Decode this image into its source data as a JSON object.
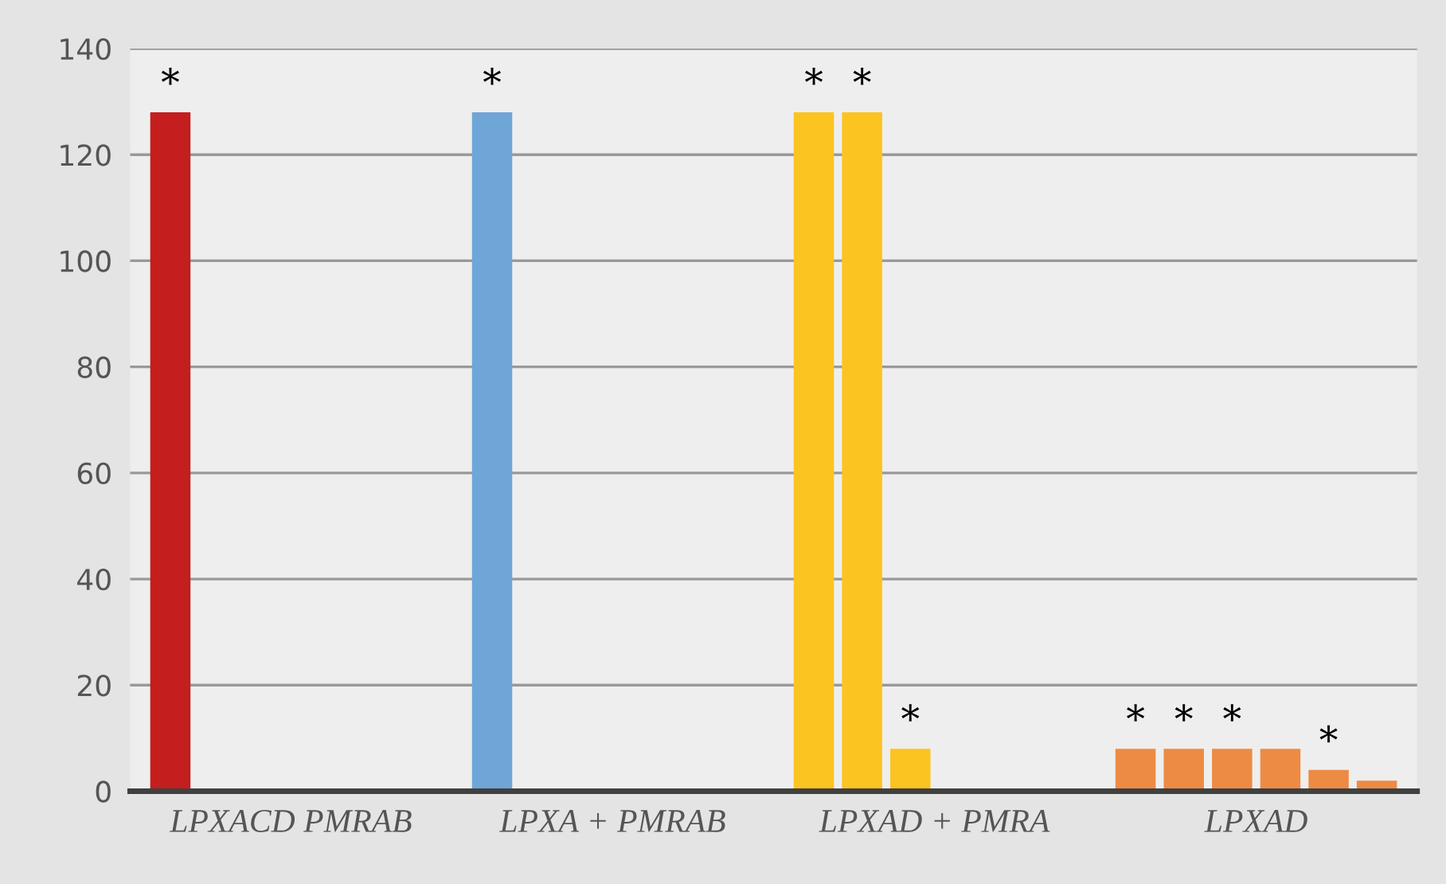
{
  "chart_data": {
    "type": "bar",
    "categories": [
      "LPXACD PMRAB",
      "LPXA + PMRAB",
      "LPXAD + PMRA",
      "LPXAD"
    ],
    "series": [
      {
        "values": [
          128,
          128,
          128,
          8
        ],
        "colors": [
          "#c41e1e",
          "#6fa6d8",
          "#fcc420",
          "#ed8b45"
        ],
        "value_labels": [
          "*",
          "*",
          "*",
          "*"
        ]
      },
      {
        "values": [
          null,
          null,
          128,
          8
        ],
        "colors": [
          "#c41e1e",
          "#6fa6d8",
          "#fcc420",
          "#ed8b45"
        ],
        "value_labels": [
          null,
          null,
          "*",
          "*"
        ]
      },
      {
        "values": [
          null,
          null,
          8,
          8
        ],
        "colors": [
          "#c41e1e",
          "#6fa6d8",
          "#fcc420",
          "#ed8b45"
        ],
        "value_labels": [
          null,
          null,
          "*",
          "*"
        ]
      },
      {
        "values": [
          null,
          null,
          null,
          8
        ],
        "colors": [
          "#c41e1e",
          "#6fa6d8",
          "#fcc420",
          "#ed8b45"
        ],
        "value_labels": [
          null,
          null,
          null,
          null
        ]
      },
      {
        "values": [
          null,
          null,
          null,
          4
        ],
        "colors": [
          "#c41e1e",
          "#6fa6d8",
          "#fcc420",
          "#ed8b45"
        ],
        "value_labels": [
          null,
          null,
          null,
          "*"
        ]
      },
      {
        "values": [
          null,
          null,
          null,
          2
        ],
        "colors": [
          "#c41e1e",
          "#6fa6d8",
          "#fcc420",
          "#ed8b45"
        ],
        "value_labels": [
          null,
          null,
          null,
          null
        ]
      }
    ],
    "ylim": [
      0,
      140
    ],
    "yticks": [
      0,
      20,
      40,
      60,
      80,
      100,
      120,
      140
    ],
    "grid": "y",
    "legend": false
  }
}
